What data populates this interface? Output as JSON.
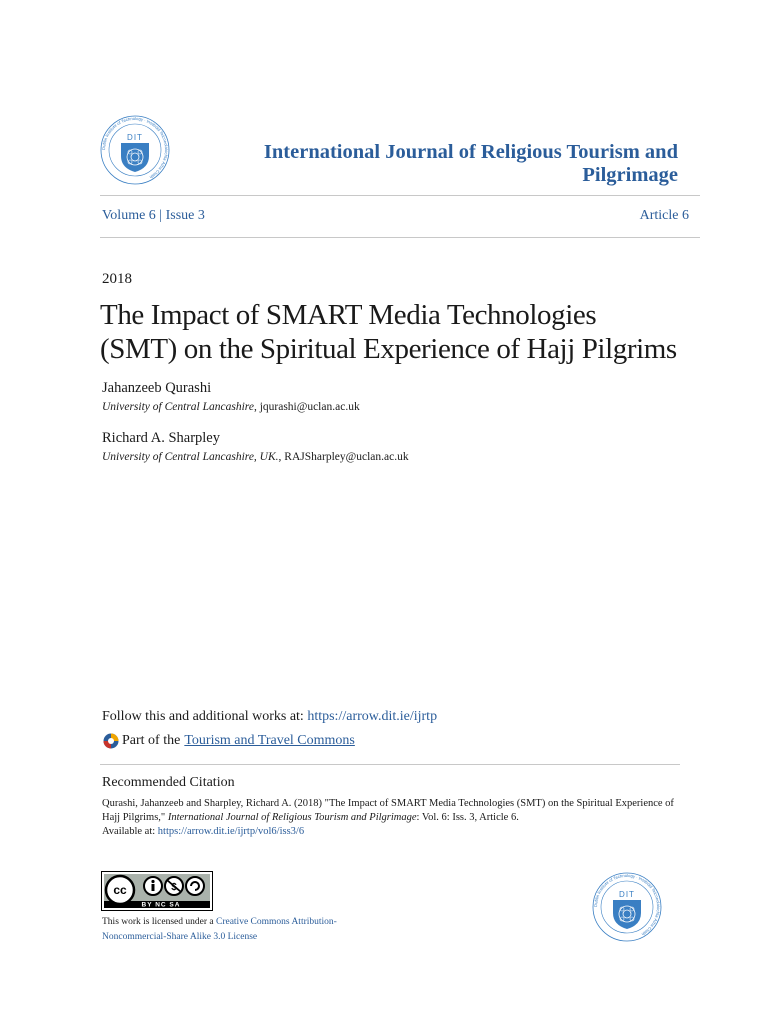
{
  "header": {
    "journal_title": "International Journal of Religious Tourism and Pilgrimage",
    "volume_issue": "Volume 6 | Issue 3",
    "article": "Article 6",
    "logo_text": "DIT",
    "logo_ring_text": "Dublin Institute of Technology · Institiúid Teicneolaíochta Átha Cliath"
  },
  "paper": {
    "year": "2018",
    "title_line1": "The Impact of SMART Media Technologies",
    "title_line2": "(SMT) on the Spiritual Experience of Hajj Pilgrims",
    "authors": [
      {
        "name": "Jahanzeeb Qurashi",
        "affiliation": "University of Central Lancashire",
        "email": "jqurashi@uclan.ac.uk"
      },
      {
        "name": "Richard A. Sharpley",
        "affiliation": "University of Central Lancashire, UK.",
        "email": "RAJSharpley@uclan.ac.uk"
      }
    ]
  },
  "follow": {
    "label": "Follow this and additional works at: ",
    "url": "https://arrow.dit.ie/ijrtp",
    "part_of_label": "Part of the",
    "part_of_link": "Tourism and Travel Commons"
  },
  "citation": {
    "heading": "Recommended Citation",
    "text_plain1": "Qurashi, Jahanzeeb and Sharpley, Richard A. (2018) \"The Impact of SMART Media Technologies (SMT) on the Spiritual Experience of Hajj Pilgrims,\" ",
    "journal_italic": "International Journal of Religious Tourism and Pilgrimage",
    "text_plain2": ": Vol. 6: Iss. 3, Article 6.",
    "available_label": "Available at: ",
    "available_url": "https://arrow.dit.ie/ijrtp/vol6/iss3/6"
  },
  "license": {
    "badge_text": "BY  NC  SA",
    "cc_text": "cc",
    "text_prefix": "This work is licensed under a ",
    "link_text": "Creative Commons Attribution-Noncommercial-Share Alike 3.0 License"
  },
  "colors": {
    "link": "#2b5d9a",
    "logo_blue": "#3a7fc3",
    "rule": "#c8c8c8"
  }
}
